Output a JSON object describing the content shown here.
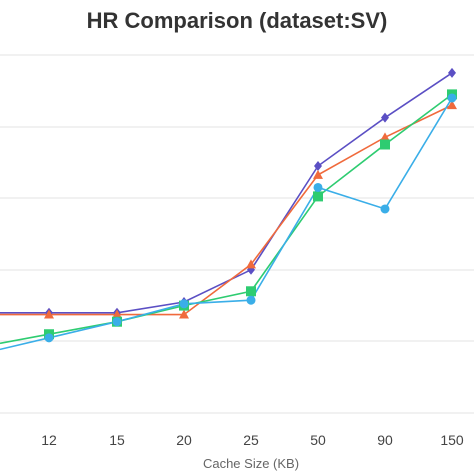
{
  "chart_data": {
    "type": "line",
    "title": "HR Comparison (dataset:SV)",
    "xlabel": "Cache Size (KB)",
    "ylabel": "",
    "categories": [
      "12",
      "15",
      "20",
      "25",
      "50",
      "90",
      "150"
    ],
    "ylim": [
      0,
      1
    ],
    "grid": "horizontal",
    "series": [
      {
        "color": "#5b4fc4",
        "marker": "diamond",
        "values": [
          0.28,
          0.28,
          0.31,
          0.4,
          0.69,
          0.825,
          0.95
        ]
      },
      {
        "color": "#f06a3c",
        "marker": "triangle",
        "values": [
          0.275,
          0.275,
          0.275,
          0.415,
          0.665,
          0.77,
          0.86
        ]
      },
      {
        "color": "#2ecc71",
        "marker": "square",
        "values": [
          0.22,
          0.255,
          0.3,
          0.34,
          0.605,
          0.75,
          0.89
        ]
      },
      {
        "color": "#3aaee8",
        "marker": "circle",
        "values": [
          0.21,
          0.255,
          0.305,
          0.315,
          0.63,
          0.57,
          0.88
        ]
      }
    ]
  }
}
